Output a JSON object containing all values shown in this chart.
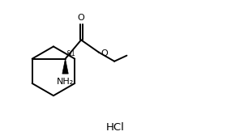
{
  "background": "#ffffff",
  "line_color": "#000000",
  "line_width": 1.4,
  "text_color": "#000000",
  "hcl_label": "HCl",
  "stereo_label": "&1",
  "nh2_label": "NH₂",
  "o_label": "O",
  "figsize": [
    2.85,
    1.73
  ],
  "dpi": 100,
  "xlim": [
    0.0,
    10.0
  ],
  "ylim": [
    0.0,
    6.5
  ]
}
